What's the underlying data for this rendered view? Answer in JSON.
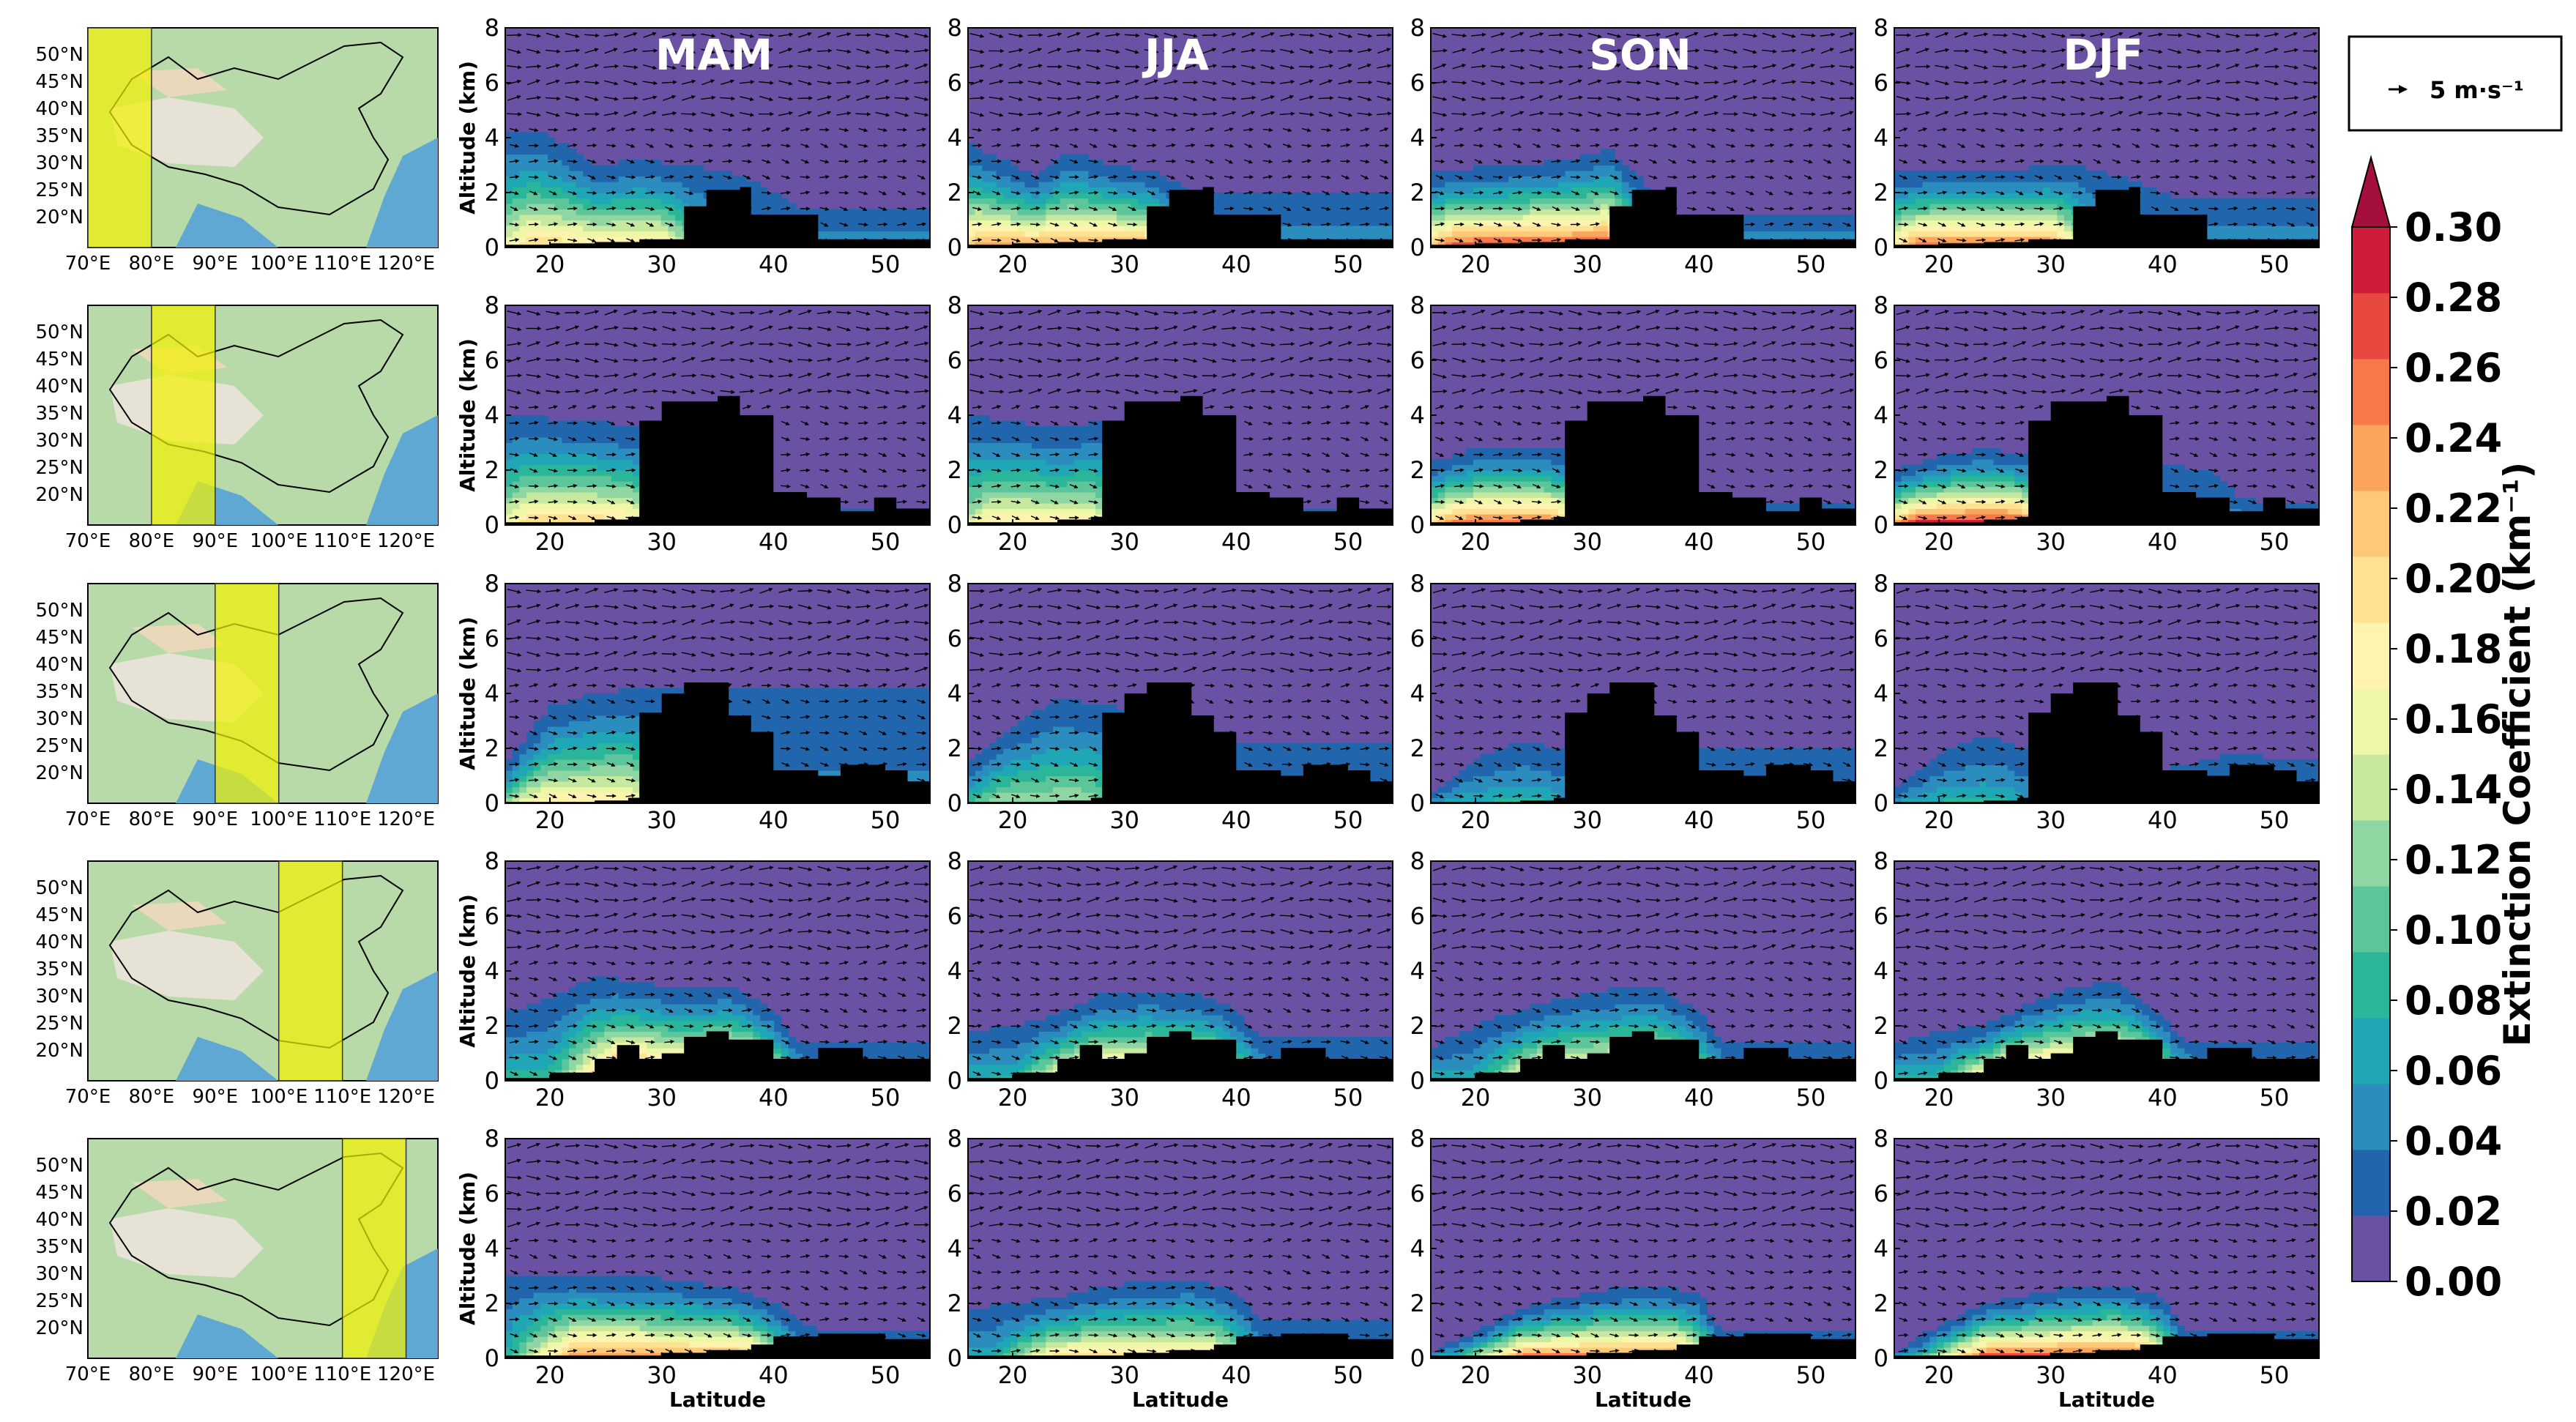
{
  "chart_data": {
    "type": "heatmap",
    "title": "",
    "seasons": [
      "MAM",
      "JJA",
      "SON",
      "DJF"
    ],
    "xlabel": "Latitude",
    "ylabel": "Altitude (km)",
    "xlim": [
      16,
      54
    ],
    "ylim": [
      0,
      8
    ],
    "x_ticks": [
      "20",
      "30",
      "40",
      "50"
    ],
    "y_ticks": [
      "0",
      "2",
      "4",
      "6",
      "8"
    ],
    "map_lon_ticks": [
      "70°E",
      "80°E",
      "90°E",
      "100°E",
      "110°E",
      "120°E"
    ],
    "map_lat_ticks": [
      "50°N",
      "45°N",
      "40°N",
      "35°N",
      "30°N",
      "25°N",
      "20°N"
    ],
    "wind_legend": "5 m·s⁻¹",
    "colorbar": {
      "label": "Extinction Coefficient (km⁻¹)",
      "ticks": [
        "0.30",
        "0.28",
        "0.26",
        "0.24",
        "0.22",
        "0.20",
        "0.18",
        "0.16",
        "0.14",
        "0.12",
        "0.10",
        "0.08",
        "0.06",
        "0.04",
        "0.02",
        "0.00"
      ],
      "levels": [
        0.0,
        0.02,
        0.04,
        0.06,
        0.08,
        0.1,
        0.12,
        0.14,
        0.16,
        0.18,
        0.2,
        0.22,
        0.24,
        0.26,
        0.28,
        0.3
      ],
      "colors": [
        "#6a51a3",
        "#2166ac",
        "#2b8cbe",
        "#1fa7b6",
        "#2bb69a",
        "#5cc69a",
        "#8fd6a3",
        "#c6e99f",
        "#eef6a8",
        "#fff3b0",
        "#fee291",
        "#fdc979",
        "#fba45e",
        "#f7794b",
        "#e8483f",
        "#d01c3b"
      ],
      "extend_color": "#a50f3b"
    },
    "rows": [
      {
        "lon_band": [
          70,
          80
        ],
        "terrain": [
          [
            16,
            0.1
          ],
          [
            20,
            0.15
          ],
          [
            24,
            0.2
          ],
          [
            28,
            0.3
          ],
          [
            32,
            1.5
          ],
          [
            34,
            2.1
          ],
          [
            37,
            2.2
          ],
          [
            38,
            1.2
          ],
          [
            43,
            1.2
          ],
          [
            44,
            0.3
          ],
          [
            50,
            0.3
          ],
          [
            54,
            0.3
          ]
        ],
        "aerosol": [
          {
            "top": [
              [
                16,
                4.3
              ],
              [
                20,
                4.1
              ],
              [
                24,
                3.0
              ],
              [
                28,
                3.2
              ],
              [
                32,
                3.0
              ],
              [
                36,
                2.8
              ],
              [
                40,
                2.0
              ],
              [
                42,
                1.5
              ]
            ],
            "peak": 0.2,
            "core": [
              18,
              30
            ]
          },
          {
            "top": [
              [
                16,
                3.8
              ],
              [
                19,
                3.2
              ],
              [
                22,
                2.6
              ],
              [
                25,
                3.5
              ],
              [
                29,
                3.0
              ],
              [
                33,
                2.7
              ],
              [
                36,
                2.0
              ]
            ],
            "peak": 0.24,
            "core": [
              17,
              32
            ]
          },
          {
            "top": [
              [
                16,
                2.7
              ],
              [
                20,
                2.9
              ],
              [
                24,
                3.0
              ],
              [
                28,
                3.2
              ],
              [
                32,
                3.6
              ],
              [
                35,
                2.4
              ],
              [
                38,
                1.2
              ]
            ],
            "peak": 0.28,
            "core": [
              18,
              32
            ]
          },
          {
            "top": [
              [
                16,
                2.7
              ],
              [
                20,
                2.8
              ],
              [
                24,
                2.8
              ],
              [
                28,
                2.9
              ],
              [
                32,
                3.0
              ],
              [
                36,
                2.6
              ],
              [
                40,
                2.0
              ],
              [
                42,
                1.8
              ]
            ],
            "peak": 0.26,
            "core": [
              18,
              30
            ]
          }
        ]
      },
      {
        "lon_band": [
          80,
          90
        ],
        "terrain": [
          [
            16,
            0.1
          ],
          [
            20,
            0.1
          ],
          [
            24,
            0.2
          ],
          [
            27,
            0.3
          ],
          [
            28,
            3.8
          ],
          [
            30,
            4.5
          ],
          [
            35,
            4.7
          ],
          [
            37,
            4.0
          ],
          [
            40,
            1.2
          ],
          [
            43,
            1.0
          ],
          [
            46,
            0.5
          ],
          [
            49,
            1.0
          ],
          [
            51,
            0.6
          ],
          [
            54,
            0.5
          ]
        ],
        "aerosol": [
          {
            "top": [
              [
                16,
                4.0
              ],
              [
                20,
                3.9
              ],
              [
                24,
                3.8
              ],
              [
                28,
                3.5
              ],
              [
                40,
                1.0
              ],
              [
                44,
                0.8
              ],
              [
                47,
                0.6
              ]
            ],
            "peak": 0.2,
            "core": [
              18,
              27
            ]
          },
          {
            "top": [
              [
                16,
                4.0
              ],
              [
                20,
                3.8
              ],
              [
                24,
                3.5
              ],
              [
                28,
                3.8
              ],
              [
                40,
                0.8
              ],
              [
                44,
                0.6
              ]
            ],
            "peak": 0.18,
            "core": [
              18,
              27
            ]
          },
          {
            "top": [
              [
                16,
                2.3
              ],
              [
                20,
                2.8
              ],
              [
                24,
                2.9
              ],
              [
                28,
                2.7
              ],
              [
                40,
                1.0
              ],
              [
                44,
                0.8
              ],
              [
                50,
                0.8
              ]
            ],
            "peak": 0.26,
            "core": [
              18,
              27
            ]
          },
          {
            "top": [
              [
                16,
                2.0
              ],
              [
                20,
                2.5
              ],
              [
                24,
                2.8
              ],
              [
                28,
                2.5
              ],
              [
                40,
                2.2
              ],
              [
                44,
                2.0
              ],
              [
                47,
                1.0
              ],
              [
                50,
                0.8
              ]
            ],
            "peak": 0.3,
            "core": [
              18,
              27
            ]
          }
        ]
      },
      {
        "lon_band": [
          90,
          100
        ],
        "terrain": [
          [
            16,
            0.05
          ],
          [
            24,
            0.1
          ],
          [
            27,
            0.2
          ],
          [
            28,
            3.3
          ],
          [
            30,
            4.0
          ],
          [
            32,
            4.4
          ],
          [
            36,
            3.2
          ],
          [
            38,
            2.6
          ],
          [
            40,
            1.2
          ],
          [
            44,
            1.0
          ],
          [
            46,
            1.4
          ],
          [
            50,
            1.2
          ],
          [
            52,
            0.8
          ],
          [
            54,
            0.7
          ]
        ],
        "aerosol": [
          {
            "top": [
              [
                16,
                1.5
              ],
              [
                20,
                3.5
              ],
              [
                24,
                4.0
              ],
              [
                28,
                4.2
              ]
            ],
            "peak": 0.18,
            "core": [
              19,
              27
            ]
          },
          {
            "top": [
              [
                16,
                1.4
              ],
              [
                20,
                2.8
              ],
              [
                24,
                3.8
              ],
              [
                28,
                3.6
              ],
              [
                36,
                3.0
              ],
              [
                40,
                2.2
              ]
            ],
            "peak": 0.12,
            "core": [
              19,
              27
            ]
          },
          {
            "top": [
              [
                16,
                0.4
              ],
              [
                20,
                1.6
              ],
              [
                24,
                2.3
              ],
              [
                27,
                2.0
              ]
            ],
            "peak": 0.06,
            "core": [
              19,
              26
            ]
          },
          {
            "top": [
              [
                16,
                0.5
              ],
              [
                20,
                1.8
              ],
              [
                24,
                2.5
              ],
              [
                27,
                2.1
              ],
              [
                40,
                1.2
              ],
              [
                46,
                1.8
              ],
              [
                52,
                1.6
              ]
            ],
            "peak": 0.06,
            "core": [
              19,
              26
            ]
          }
        ]
      },
      {
        "lon_band": [
          100,
          110
        ],
        "terrain": [
          [
            16,
            0.1
          ],
          [
            20,
            0.3
          ],
          [
            24,
            0.8
          ],
          [
            26,
            1.3
          ],
          [
            28,
            0.8
          ],
          [
            30,
            1.0
          ],
          [
            32,
            1.6
          ],
          [
            34,
            1.8
          ],
          [
            36,
            1.5
          ],
          [
            40,
            0.8
          ],
          [
            44,
            1.2
          ],
          [
            48,
            0.8
          ],
          [
            54,
            0.6
          ]
        ],
        "aerosol": [
          {
            "top": [
              [
                16,
                2.5
              ],
              [
                20,
                3.0
              ],
              [
                24,
                3.8
              ],
              [
                28,
                3.6
              ],
              [
                32,
                3.3
              ],
              [
                36,
                3.5
              ],
              [
                40,
                2.6
              ],
              [
                42,
                1.5
              ]
            ],
            "peak": 0.28,
            "core": [
              26,
              38
            ]
          },
          {
            "top": [
              [
                16,
                1.8
              ],
              [
                20,
                2.0
              ],
              [
                24,
                2.4
              ],
              [
                28,
                3.2
              ],
              [
                32,
                3.3
              ],
              [
                36,
                3.2
              ],
              [
                40,
                2.6
              ],
              [
                42,
                1.6
              ]
            ],
            "peak": 0.24,
            "core": [
              26,
              38
            ]
          },
          {
            "top": [
              [
                16,
                1.2
              ],
              [
                20,
                2.0
              ],
              [
                24,
                2.6
              ],
              [
                28,
                3.0
              ],
              [
                32,
                3.3
              ],
              [
                36,
                3.5
              ],
              [
                40,
                2.5
              ],
              [
                42,
                1.5
              ]
            ],
            "peak": 0.22,
            "core": [
              26,
              38
            ]
          },
          {
            "top": [
              [
                16,
                1.4
              ],
              [
                20,
                1.8
              ],
              [
                24,
                2.0
              ],
              [
                28,
                2.8
              ],
              [
                32,
                3.4
              ],
              [
                36,
                3.6
              ],
              [
                40,
                2.4
              ],
              [
                42,
                1.4
              ]
            ],
            "peak": 0.28,
            "core": [
              26,
              38
            ]
          }
        ]
      },
      {
        "lon_band": [
          110,
          120
        ],
        "terrain": [
          [
            16,
            0.1
          ],
          [
            24,
            0.1
          ],
          [
            30,
            0.2
          ],
          [
            34,
            0.3
          ],
          [
            38,
            0.5
          ],
          [
            40,
            0.8
          ],
          [
            44,
            0.9
          ],
          [
            50,
            0.7
          ],
          [
            54,
            0.5
          ]
        ],
        "aerosol": [
          {
            "top": [
              [
                16,
                3.0
              ],
              [
                20,
                3.1
              ],
              [
                24,
                3.0
              ],
              [
                28,
                3.0
              ],
              [
                32,
                2.8
              ],
              [
                36,
                2.6
              ],
              [
                40,
                2.0
              ],
              [
                44,
                1.0
              ]
            ],
            "peak": 0.24,
            "core": [
              22,
              38
            ]
          },
          {
            "top": [
              [
                16,
                1.8
              ],
              [
                20,
                2.0
              ],
              [
                24,
                2.2
              ],
              [
                28,
                2.6
              ],
              [
                32,
                2.8
              ],
              [
                36,
                2.9
              ],
              [
                40,
                2.4
              ],
              [
                42,
                1.5
              ]
            ],
            "peak": 0.2,
            "core": [
              24,
              38
            ]
          },
          {
            "top": [
              [
                16,
                0.2
              ],
              [
                20,
                1.0
              ],
              [
                24,
                1.8
              ],
              [
                28,
                2.2
              ],
              [
                32,
                2.5
              ],
              [
                36,
                2.6
              ],
              [
                40,
                2.4
              ],
              [
                42,
                1.0
              ]
            ],
            "peak": 0.26,
            "core": [
              24,
              38
            ]
          },
          {
            "top": [
              [
                16,
                0.2
              ],
              [
                20,
                1.2
              ],
              [
                24,
                2.0
              ],
              [
                28,
                2.3
              ],
              [
                32,
                2.6
              ],
              [
                36,
                2.7
              ],
              [
                40,
                2.2
              ],
              [
                42,
                1.0
              ]
            ],
            "peak": 0.28,
            "core": [
              24,
              38
            ]
          }
        ]
      }
    ]
  }
}
